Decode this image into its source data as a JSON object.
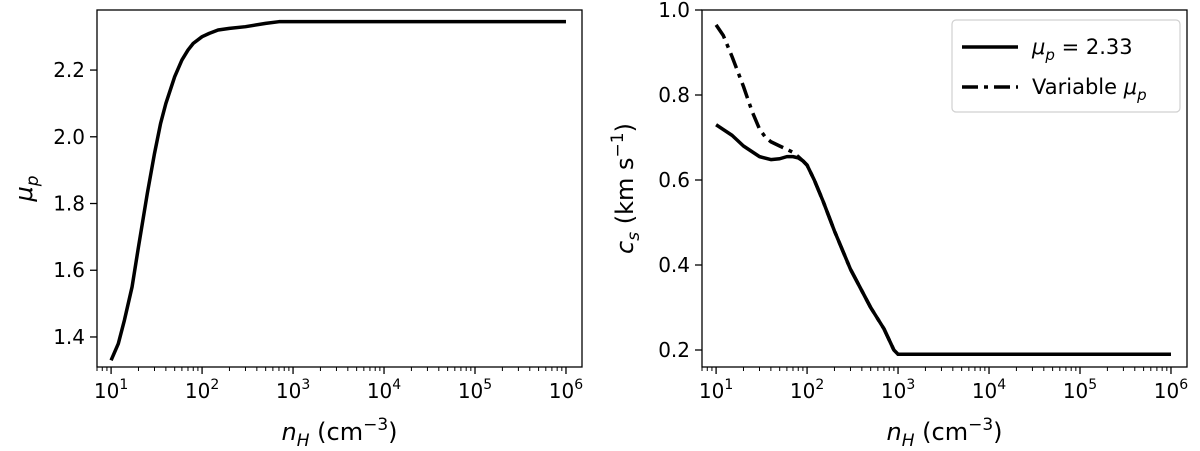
{
  "chart_data": [
    {
      "type": "line",
      "panel": "left",
      "xscale": "log",
      "xlim": [
        7,
        1500000
      ],
      "ylim": [
        1.31,
        2.38
      ],
      "xlabel": {
        "main": "n",
        "sub": "H",
        "unit_open": " (cm",
        "sup": "−3",
        "unit_close": ")"
      },
      "ylabel": {
        "main": "μ",
        "sub": "p"
      },
      "xticks": [
        {
          "value": 10,
          "base": "10",
          "exp": "1"
        },
        {
          "value": 100,
          "base": "10",
          "exp": "2"
        },
        {
          "value": 1000,
          "base": "10",
          "exp": "3"
        },
        {
          "value": 10000,
          "base": "10",
          "exp": "4"
        },
        {
          "value": 100000,
          "base": "10",
          "exp": "5"
        },
        {
          "value": 1000000,
          "base": "10",
          "exp": "6"
        }
      ],
      "yticks": [
        1.4,
        1.6,
        1.8,
        2.0,
        2.2
      ],
      "ytick_labels": [
        "1.4",
        "1.6",
        "1.8",
        "2.0",
        "2.2"
      ],
      "grid": false,
      "series": [
        {
          "style": "solid",
          "color": "#000000",
          "x": [
            10,
            12,
            14,
            17,
            20,
            25,
            30,
            35,
            40,
            50,
            60,
            70,
            80,
            100,
            120,
            150,
            200,
            300,
            500,
            700,
            1000,
            10000,
            100000,
            1000000
          ],
          "y": [
            1.33,
            1.38,
            1.45,
            1.55,
            1.67,
            1.83,
            1.95,
            2.04,
            2.1,
            2.18,
            2.23,
            2.26,
            2.28,
            2.3,
            2.31,
            2.32,
            2.325,
            2.33,
            2.34,
            2.345,
            2.345,
            2.345,
            2.345,
            2.345
          ]
        }
      ]
    },
    {
      "type": "line",
      "panel": "right",
      "xscale": "log",
      "xlim": [
        7,
        1500000
      ],
      "ylim": [
        0.16,
        1.0
      ],
      "xlabel": {
        "main": "n",
        "sub": "H",
        "unit_open": " (cm",
        "sup": "−3",
        "unit_close": ")"
      },
      "ylabel": {
        "main": "c",
        "sub": "s",
        "unit_open": " (km s",
        "sup": "−1",
        "unit_close": ")"
      },
      "xticks": [
        {
          "value": 10,
          "base": "10",
          "exp": "1"
        },
        {
          "value": 100,
          "base": "10",
          "exp": "2"
        },
        {
          "value": 1000,
          "base": "10",
          "exp": "3"
        },
        {
          "value": 10000,
          "base": "10",
          "exp": "4"
        },
        {
          "value": 100000,
          "base": "10",
          "exp": "5"
        },
        {
          "value": 1000000,
          "base": "10",
          "exp": "6"
        }
      ],
      "yticks": [
        0.2,
        0.4,
        0.6,
        0.8,
        1.0
      ],
      "ytick_labels": [
        "0.2",
        "0.4",
        "0.6",
        "0.8",
        "1.0"
      ],
      "grid": false,
      "legend_position": "top-right",
      "series": [
        {
          "legend": {
            "main": "μ",
            "sub": "p",
            "rest": " = 2.33"
          },
          "style": "solid",
          "color": "#000000",
          "x": [
            10,
            15,
            20,
            30,
            40,
            50,
            60,
            70,
            80,
            90,
            100,
            120,
            150,
            200,
            300,
            500,
            700,
            900,
            1000,
            10000,
            100000,
            1000000
          ],
          "y": [
            0.73,
            0.705,
            0.68,
            0.655,
            0.648,
            0.65,
            0.655,
            0.655,
            0.652,
            0.645,
            0.635,
            0.6,
            0.55,
            0.48,
            0.39,
            0.3,
            0.25,
            0.2,
            0.19,
            0.19,
            0.19,
            0.19
          ]
        },
        {
          "legend": {
            "main": "Variable ",
            "sym": "μ",
            "sub": "p"
          },
          "style": "dashdot",
          "color": "#000000",
          "x": [
            10,
            12,
            15,
            20,
            25,
            30,
            35,
            40,
            50,
            60,
            70,
            80,
            90,
            100,
            120,
            150,
            200,
            300,
            500,
            700,
            900,
            1000,
            10000,
            100000,
            1000000
          ],
          "y": [
            0.965,
            0.94,
            0.89,
            0.82,
            0.76,
            0.72,
            0.7,
            0.69,
            0.68,
            0.672,
            0.665,
            0.655,
            0.645,
            0.635,
            0.6,
            0.55,
            0.48,
            0.39,
            0.3,
            0.25,
            0.2,
            0.19,
            0.19,
            0.19,
            0.19
          ]
        }
      ]
    }
  ]
}
